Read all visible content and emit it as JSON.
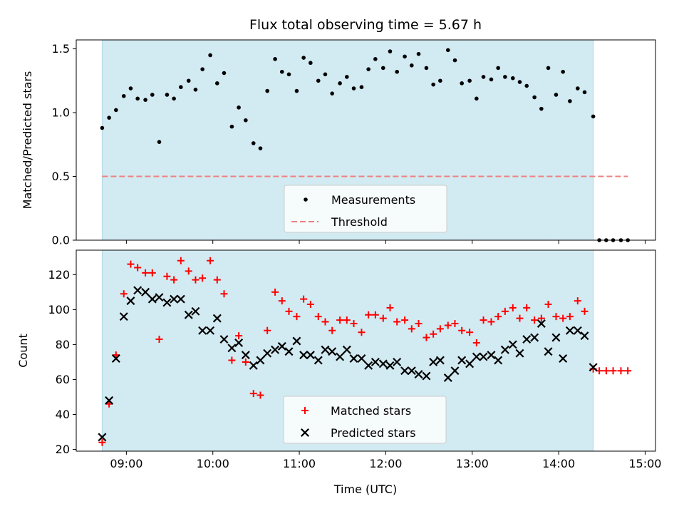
{
  "chart_data": {
    "type": "scatter",
    "title": "Flux total observing time = 5.67 h",
    "xlabel": "Time (UTC)",
    "x_unit": "hours UTC",
    "xlim": [
      8.42,
      15.12
    ],
    "x_ticks": [
      9,
      10,
      11,
      12,
      13,
      14,
      15
    ],
    "x_tick_labels": [
      "09:00",
      "10:00",
      "11:00",
      "12:00",
      "13:00",
      "14:00",
      "15:00"
    ],
    "observing_window": [
      8.72,
      14.4
    ],
    "window_color": "#add8e6",
    "panels": [
      {
        "ylabel": "Matched/Predicted stars",
        "ylim": [
          0,
          1.57
        ],
        "y_ticks": [
          0,
          0.5,
          1.0,
          1.5
        ],
        "y_tick_labels": [
          "0.0",
          "0.5",
          "1.0",
          "1.5"
        ],
        "legend": {
          "placement": "lower-center",
          "entries": [
            "Measurements",
            "Threshold"
          ]
        },
        "series": [
          {
            "name": "Measurements",
            "marker": "dot",
            "color": "#000000",
            "x": [
              8.72,
              8.8,
              8.88,
              8.97,
              9.05,
              9.13,
              9.22,
              9.3,
              9.38,
              9.47,
              9.55,
              9.63,
              9.72,
              9.8,
              9.88,
              9.97,
              10.05,
              10.13,
              10.22,
              10.3,
              10.38,
              10.47,
              10.55,
              10.63,
              10.72,
              10.8,
              10.88,
              10.97,
              11.05,
              11.13,
              11.22,
              11.3,
              11.38,
              11.47,
              11.55,
              11.63,
              11.72,
              11.8,
              11.88,
              11.97,
              12.05,
              12.13,
              12.22,
              12.3,
              12.38,
              12.47,
              12.55,
              12.63,
              12.72,
              12.8,
              12.88,
              12.97,
              13.05,
              13.13,
              13.22,
              13.3,
              13.38,
              13.47,
              13.55,
              13.63,
              13.72,
              13.8,
              13.88,
              13.97,
              14.05,
              14.13,
              14.22,
              14.3,
              14.4,
              14.47,
              14.55,
              14.63,
              14.72,
              14.8
            ],
            "y": [
              0.88,
              0.96,
              1.02,
              1.13,
              1.19,
              1.11,
              1.1,
              1.14,
              0.77,
              1.14,
              1.11,
              1.2,
              1.25,
              1.18,
              1.34,
              1.45,
              1.23,
              1.31,
              0.89,
              1.04,
              0.94,
              0.76,
              0.72,
              1.17,
              1.42,
              1.32,
              1.3,
              1.17,
              1.43,
              1.39,
              1.25,
              1.3,
              1.15,
              1.23,
              1.28,
              1.19,
              1.2,
              1.34,
              1.42,
              1.35,
              1.48,
              1.32,
              1.44,
              1.37,
              1.46,
              1.35,
              1.22,
              1.25,
              1.49,
              1.41,
              1.23,
              1.25,
              1.11,
              1.28,
              1.26,
              1.35,
              1.28,
              1.27,
              1.24,
              1.21,
              1.12,
              1.03,
              1.35,
              1.14,
              1.32,
              1.09,
              1.19,
              1.16,
              0.97,
              0,
              0,
              0,
              0,
              0
            ]
          },
          {
            "name": "Threshold",
            "style": "dashed",
            "color": "#f08080",
            "x": [
              8.72,
              14.8
            ],
            "y": [
              0.5,
              0.5
            ]
          }
        ]
      },
      {
        "ylabel": "Count",
        "ylim": [
          19,
          134
        ],
        "y_ticks": [
          20,
          40,
          60,
          80,
          100,
          120
        ],
        "y_tick_labels": [
          "20",
          "40",
          "60",
          "80",
          "100",
          "120"
        ],
        "legend": {
          "placement": "lower-center",
          "entries": [
            "Matched stars",
            "Predicted stars"
          ]
        },
        "series": [
          {
            "name": "Matched stars",
            "marker": "plus",
            "color": "#ff0000",
            "x": [
              8.72,
              8.8,
              8.88,
              8.97,
              9.05,
              9.13,
              9.22,
              9.3,
              9.38,
              9.47,
              9.55,
              9.63,
              9.72,
              9.8,
              9.88,
              9.97,
              10.05,
              10.13,
              10.22,
              10.3,
              10.38,
              10.47,
              10.55,
              10.63,
              10.72,
              10.8,
              10.88,
              10.97,
              11.05,
              11.13,
              11.22,
              11.3,
              11.38,
              11.47,
              11.55,
              11.63,
              11.72,
              11.8,
              11.88,
              11.97,
              12.05,
              12.13,
              12.22,
              12.3,
              12.38,
              12.47,
              12.55,
              12.63,
              12.72,
              12.8,
              12.88,
              12.97,
              13.05,
              13.13,
              13.22,
              13.3,
              13.38,
              13.47,
              13.55,
              13.63,
              13.72,
              13.8,
              13.88,
              13.97,
              14.05,
              14.13,
              14.22,
              14.3,
              14.4,
              14.47,
              14.55,
              14.63,
              14.72,
              14.8
            ],
            "y": [
              24,
              46,
              74,
              109,
              126,
              124,
              121,
              121,
              83,
              119,
              117,
              128,
              122,
              117,
              118,
              128,
              117,
              109,
              71,
              85,
              70,
              52,
              51,
              88,
              110,
              105,
              99,
              96,
              106,
              103,
              96,
              93,
              88,
              94,
              94,
              92,
              87,
              97,
              97,
              95,
              101,
              93,
              94,
              89,
              92,
              84,
              86,
              89,
              91,
              92,
              88,
              87,
              81,
              94,
              93,
              96,
              99,
              101,
              95,
              101,
              94,
              95,
              103,
              96,
              95,
              96,
              105,
              99,
              66,
              65,
              65,
              65,
              65,
              65
            ]
          },
          {
            "name": "Predicted stars",
            "marker": "x",
            "color": "#000000",
            "x": [
              8.72,
              8.8,
              8.88,
              8.97,
              9.05,
              9.13,
              9.22,
              9.3,
              9.38,
              9.47,
              9.55,
              9.63,
              9.72,
              9.8,
              9.88,
              9.97,
              10.05,
              10.13,
              10.22,
              10.3,
              10.38,
              10.47,
              10.55,
              10.63,
              10.72,
              10.8,
              10.88,
              10.97,
              11.05,
              11.13,
              11.22,
              11.3,
              11.38,
              11.47,
              11.55,
              11.63,
              11.72,
              11.8,
              11.88,
              11.97,
              12.05,
              12.13,
              12.22,
              12.3,
              12.38,
              12.47,
              12.55,
              12.63,
              12.72,
              12.8,
              12.88,
              12.97,
              13.05,
              13.13,
              13.22,
              13.3,
              13.38,
              13.47,
              13.55,
              13.63,
              13.72,
              13.8,
              13.88,
              13.97,
              14.05,
              14.13,
              14.22,
              14.3,
              14.4
            ],
            "y": [
              27,
              48,
              72,
              96,
              105,
              111,
              110,
              106,
              107,
              104,
              106,
              106,
              97,
              99,
              88,
              88,
              95,
              83,
              78,
              81,
              74,
              68,
              71,
              75,
              77,
              79,
              76,
              82,
              74,
              74,
              71,
              77,
              76,
              73,
              77,
              72,
              72,
              68,
              70,
              69,
              68,
              70,
              65,
              65,
              63,
              62,
              70,
              71,
              61,
              65,
              71,
              69,
              73,
              73,
              74,
              71,
              77,
              80,
              75,
              83,
              84,
              92,
              76,
              84,
              72,
              88,
              88,
              85,
              67
            ]
          }
        ]
      }
    ]
  }
}
